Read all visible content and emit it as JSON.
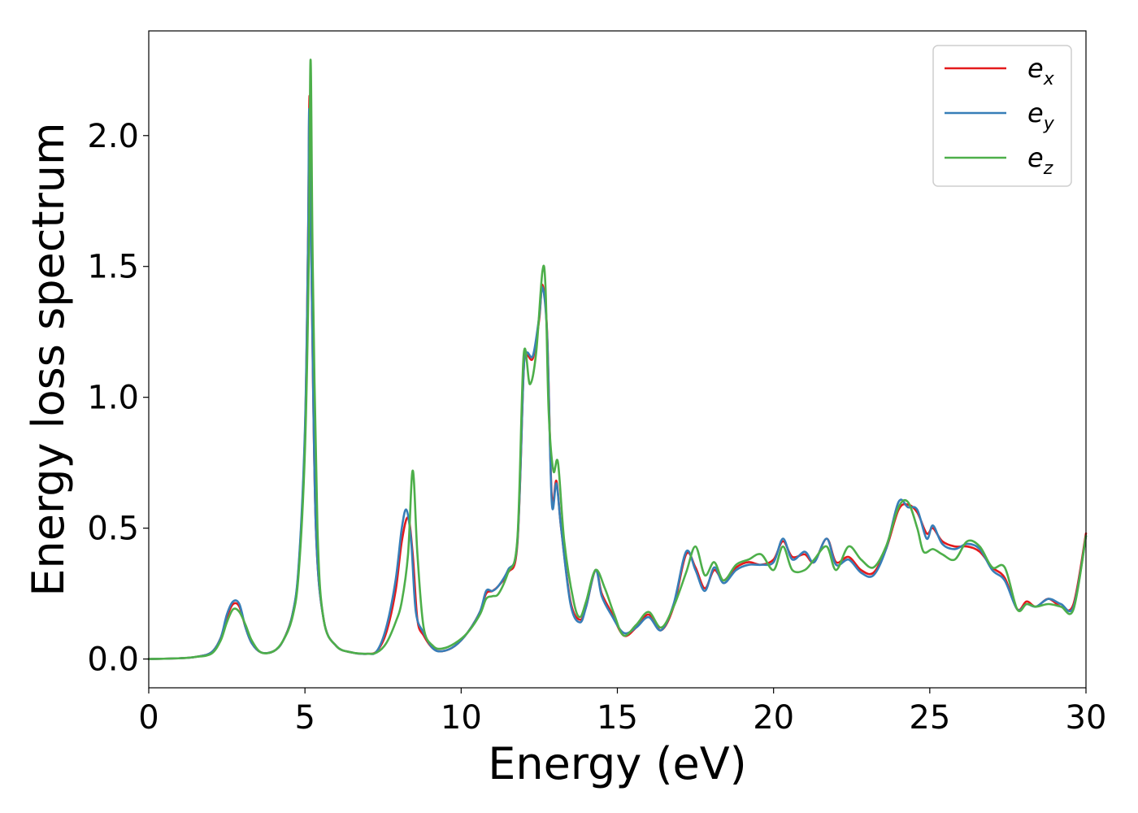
{
  "chart_data": {
    "type": "line",
    "title": "",
    "xlabel": "Energy (eV)",
    "ylabel": "Energy loss spectrum",
    "xlim": [
      0,
      30
    ],
    "ylim": [
      -0.11,
      2.4
    ],
    "grid": false,
    "legend_position": "top-right",
    "xticks": [
      0,
      5,
      10,
      15,
      20,
      25,
      30
    ],
    "xtick_labels": [
      "0",
      "5",
      "10",
      "15",
      "20",
      "25",
      "30"
    ],
    "yticks": [
      0.0,
      0.5,
      1.0,
      1.5,
      2.0
    ],
    "ytick_labels": [
      "0.0",
      "0.5",
      "1.0",
      "1.5",
      "2.0"
    ],
    "series": [
      {
        "name": "e_x",
        "label_main": "e",
        "label_sub": "x",
        "color": "#e41a1c",
        "points": [
          [
            0,
            0
          ],
          [
            1,
            0.003
          ],
          [
            1.5,
            0.008
          ],
          [
            2.0,
            0.025
          ],
          [
            2.3,
            0.08
          ],
          [
            2.5,
            0.16
          ],
          [
            2.7,
            0.21
          ],
          [
            2.9,
            0.2
          ],
          [
            3.1,
            0.12
          ],
          [
            3.3,
            0.06
          ],
          [
            3.6,
            0.025
          ],
          [
            4.0,
            0.03
          ],
          [
            4.3,
            0.07
          ],
          [
            4.6,
            0.17
          ],
          [
            4.8,
            0.35
          ],
          [
            5.0,
            0.85
          ],
          [
            5.1,
            1.6
          ],
          [
            5.15,
            2.15
          ],
          [
            5.22,
            1.4
          ],
          [
            5.35,
            0.5
          ],
          [
            5.6,
            0.15
          ],
          [
            6.0,
            0.05
          ],
          [
            6.5,
            0.025
          ],
          [
            7.0,
            0.02
          ],
          [
            7.3,
            0.03
          ],
          [
            7.6,
            0.1
          ],
          [
            7.9,
            0.26
          ],
          [
            8.1,
            0.45
          ],
          [
            8.3,
            0.54
          ],
          [
            8.45,
            0.4
          ],
          [
            8.6,
            0.15
          ],
          [
            8.8,
            0.09
          ],
          [
            9.1,
            0.04
          ],
          [
            9.4,
            0.03
          ],
          [
            9.8,
            0.05
          ],
          [
            10.2,
            0.1
          ],
          [
            10.6,
            0.18
          ],
          [
            10.8,
            0.25
          ],
          [
            11.0,
            0.26
          ],
          [
            11.2,
            0.28
          ],
          [
            11.5,
            0.33
          ],
          [
            11.8,
            0.44
          ],
          [
            12.0,
            1.1
          ],
          [
            12.1,
            1.16
          ],
          [
            12.3,
            1.15
          ],
          [
            12.5,
            1.3
          ],
          [
            12.6,
            1.43
          ],
          [
            12.75,
            1.25
          ],
          [
            12.9,
            0.62
          ],
          [
            13.05,
            0.68
          ],
          [
            13.2,
            0.5
          ],
          [
            13.5,
            0.22
          ],
          [
            13.8,
            0.15
          ],
          [
            14.0,
            0.2
          ],
          [
            14.3,
            0.34
          ],
          [
            14.5,
            0.25
          ],
          [
            14.8,
            0.18
          ],
          [
            15.2,
            0.09
          ],
          [
            15.6,
            0.12
          ],
          [
            16.0,
            0.17
          ],
          [
            16.4,
            0.11
          ],
          [
            16.8,
            0.2
          ],
          [
            17.2,
            0.4
          ],
          [
            17.5,
            0.35
          ],
          [
            17.8,
            0.27
          ],
          [
            18.1,
            0.34
          ],
          [
            18.4,
            0.3
          ],
          [
            18.8,
            0.35
          ],
          [
            19.2,
            0.37
          ],
          [
            19.6,
            0.36
          ],
          [
            20.0,
            0.38
          ],
          [
            20.3,
            0.45
          ],
          [
            20.6,
            0.39
          ],
          [
            21.0,
            0.4
          ],
          [
            21.3,
            0.37
          ],
          [
            21.7,
            0.46
          ],
          [
            22.0,
            0.37
          ],
          [
            22.4,
            0.39
          ],
          [
            22.8,
            0.34
          ],
          [
            23.2,
            0.33
          ],
          [
            23.6,
            0.42
          ],
          [
            24.0,
            0.57
          ],
          [
            24.3,
            0.59
          ],
          [
            24.6,
            0.56
          ],
          [
            24.9,
            0.48
          ],
          [
            25.1,
            0.5
          ],
          [
            25.4,
            0.45
          ],
          [
            25.8,
            0.43
          ],
          [
            26.2,
            0.43
          ],
          [
            26.6,
            0.41
          ],
          [
            27.0,
            0.35
          ],
          [
            27.4,
            0.31
          ],
          [
            27.8,
            0.19
          ],
          [
            28.1,
            0.22
          ],
          [
            28.4,
            0.2
          ],
          [
            28.8,
            0.23
          ],
          [
            29.2,
            0.2
          ],
          [
            29.6,
            0.21
          ],
          [
            30,
            0.48
          ]
        ]
      },
      {
        "name": "e_y",
        "label_main": "e",
        "label_sub": "y",
        "color": "#377eb8",
        "points": [
          [
            0,
            0
          ],
          [
            1,
            0.003
          ],
          [
            1.5,
            0.008
          ],
          [
            2.0,
            0.025
          ],
          [
            2.3,
            0.08
          ],
          [
            2.5,
            0.17
          ],
          [
            2.7,
            0.22
          ],
          [
            2.9,
            0.21
          ],
          [
            3.1,
            0.12
          ],
          [
            3.3,
            0.06
          ],
          [
            3.6,
            0.025
          ],
          [
            4.0,
            0.03
          ],
          [
            4.3,
            0.07
          ],
          [
            4.6,
            0.17
          ],
          [
            4.8,
            0.36
          ],
          [
            5.0,
            0.88
          ],
          [
            5.1,
            1.6
          ],
          [
            5.14,
            2.1
          ],
          [
            5.22,
            1.4
          ],
          [
            5.35,
            0.5
          ],
          [
            5.6,
            0.15
          ],
          [
            6.0,
            0.05
          ],
          [
            6.5,
            0.025
          ],
          [
            7.0,
            0.02
          ],
          [
            7.3,
            0.03
          ],
          [
            7.6,
            0.12
          ],
          [
            7.9,
            0.3
          ],
          [
            8.1,
            0.5
          ],
          [
            8.25,
            0.57
          ],
          [
            8.4,
            0.45
          ],
          [
            8.55,
            0.18
          ],
          [
            8.8,
            0.1
          ],
          [
            9.1,
            0.04
          ],
          [
            9.4,
            0.03
          ],
          [
            9.8,
            0.05
          ],
          [
            10.2,
            0.1
          ],
          [
            10.6,
            0.18
          ],
          [
            10.8,
            0.26
          ],
          [
            11.0,
            0.26
          ],
          [
            11.2,
            0.28
          ],
          [
            11.5,
            0.34
          ],
          [
            11.8,
            0.45
          ],
          [
            12.0,
            1.1
          ],
          [
            12.1,
            1.17
          ],
          [
            12.3,
            1.16
          ],
          [
            12.5,
            1.31
          ],
          [
            12.6,
            1.42
          ],
          [
            12.75,
            1.24
          ],
          [
            12.9,
            0.6
          ],
          [
            13.05,
            0.67
          ],
          [
            13.2,
            0.5
          ],
          [
            13.5,
            0.21
          ],
          [
            13.8,
            0.14
          ],
          [
            14.0,
            0.2
          ],
          [
            14.3,
            0.34
          ],
          [
            14.5,
            0.24
          ],
          [
            14.8,
            0.17
          ],
          [
            15.2,
            0.1
          ],
          [
            15.6,
            0.12
          ],
          [
            16.0,
            0.16
          ],
          [
            16.4,
            0.11
          ],
          [
            16.8,
            0.21
          ],
          [
            17.2,
            0.41
          ],
          [
            17.5,
            0.34
          ],
          [
            17.8,
            0.26
          ],
          [
            18.1,
            0.35
          ],
          [
            18.4,
            0.29
          ],
          [
            18.8,
            0.34
          ],
          [
            19.2,
            0.36
          ],
          [
            19.6,
            0.36
          ],
          [
            20.0,
            0.37
          ],
          [
            20.3,
            0.46
          ],
          [
            20.6,
            0.38
          ],
          [
            21.0,
            0.41
          ],
          [
            21.3,
            0.37
          ],
          [
            21.7,
            0.46
          ],
          [
            22.0,
            0.36
          ],
          [
            22.4,
            0.38
          ],
          [
            22.8,
            0.33
          ],
          [
            23.2,
            0.32
          ],
          [
            23.6,
            0.42
          ],
          [
            24.0,
            0.6
          ],
          [
            24.3,
            0.58
          ],
          [
            24.6,
            0.57
          ],
          [
            24.9,
            0.46
          ],
          [
            25.1,
            0.51
          ],
          [
            25.4,
            0.44
          ],
          [
            25.8,
            0.42
          ],
          [
            26.2,
            0.44
          ],
          [
            26.6,
            0.42
          ],
          [
            27.0,
            0.34
          ],
          [
            27.4,
            0.3
          ],
          [
            27.8,
            0.19
          ],
          [
            28.1,
            0.21
          ],
          [
            28.4,
            0.2
          ],
          [
            28.8,
            0.23
          ],
          [
            29.2,
            0.21
          ],
          [
            29.6,
            0.2
          ],
          [
            30,
            0.47
          ]
        ]
      },
      {
        "name": "e_z",
        "label_main": "e",
        "label_sub": "z",
        "color": "#4daf4a",
        "points": [
          [
            0,
            0
          ],
          [
            1,
            0.003
          ],
          [
            1.5,
            0.008
          ],
          [
            2.0,
            0.02
          ],
          [
            2.3,
            0.07
          ],
          [
            2.5,
            0.14
          ],
          [
            2.7,
            0.19
          ],
          [
            2.9,
            0.18
          ],
          [
            3.1,
            0.13
          ],
          [
            3.3,
            0.07
          ],
          [
            3.6,
            0.025
          ],
          [
            4.0,
            0.03
          ],
          [
            4.3,
            0.07
          ],
          [
            4.6,
            0.16
          ],
          [
            4.8,
            0.33
          ],
          [
            5.0,
            0.8
          ],
          [
            5.12,
            1.5
          ],
          [
            5.18,
            2.29
          ],
          [
            5.25,
            1.5
          ],
          [
            5.4,
            0.5
          ],
          [
            5.6,
            0.15
          ],
          [
            6.0,
            0.05
          ],
          [
            6.5,
            0.025
          ],
          [
            7.0,
            0.02
          ],
          [
            7.3,
            0.025
          ],
          [
            7.6,
            0.06
          ],
          [
            7.9,
            0.14
          ],
          [
            8.1,
            0.22
          ],
          [
            8.3,
            0.4
          ],
          [
            8.45,
            0.72
          ],
          [
            8.6,
            0.4
          ],
          [
            8.8,
            0.12
          ],
          [
            9.1,
            0.05
          ],
          [
            9.4,
            0.04
          ],
          [
            9.8,
            0.06
          ],
          [
            10.2,
            0.1
          ],
          [
            10.6,
            0.17
          ],
          [
            10.8,
            0.23
          ],
          [
            11.0,
            0.24
          ],
          [
            11.2,
            0.25
          ],
          [
            11.5,
            0.33
          ],
          [
            11.8,
            0.46
          ],
          [
            12.0,
            1.16
          ],
          [
            12.2,
            1.05
          ],
          [
            12.4,
            1.17
          ],
          [
            12.6,
            1.48
          ],
          [
            12.7,
            1.42
          ],
          [
            12.8,
            0.95
          ],
          [
            12.95,
            0.72
          ],
          [
            13.1,
            0.75
          ],
          [
            13.3,
            0.45
          ],
          [
            13.6,
            0.22
          ],
          [
            13.8,
            0.16
          ],
          [
            14.0,
            0.22
          ],
          [
            14.3,
            0.34
          ],
          [
            14.6,
            0.27
          ],
          [
            14.9,
            0.17
          ],
          [
            15.2,
            0.09
          ],
          [
            15.6,
            0.13
          ],
          [
            16.0,
            0.18
          ],
          [
            16.4,
            0.12
          ],
          [
            16.8,
            0.2
          ],
          [
            17.2,
            0.33
          ],
          [
            17.5,
            0.43
          ],
          [
            17.8,
            0.32
          ],
          [
            18.1,
            0.37
          ],
          [
            18.4,
            0.3
          ],
          [
            18.8,
            0.36
          ],
          [
            19.2,
            0.38
          ],
          [
            19.6,
            0.4
          ],
          [
            20.0,
            0.34
          ],
          [
            20.3,
            0.43
          ],
          [
            20.6,
            0.34
          ],
          [
            21.0,
            0.34
          ],
          [
            21.3,
            0.38
          ],
          [
            21.7,
            0.43
          ],
          [
            22.0,
            0.34
          ],
          [
            22.4,
            0.43
          ],
          [
            22.8,
            0.38
          ],
          [
            23.2,
            0.35
          ],
          [
            23.6,
            0.43
          ],
          [
            24.0,
            0.58
          ],
          [
            24.3,
            0.6
          ],
          [
            24.6,
            0.5
          ],
          [
            24.8,
            0.41
          ],
          [
            25.1,
            0.42
          ],
          [
            25.4,
            0.4
          ],
          [
            25.8,
            0.38
          ],
          [
            26.2,
            0.45
          ],
          [
            26.6,
            0.43
          ],
          [
            27.0,
            0.35
          ],
          [
            27.4,
            0.35
          ],
          [
            27.8,
            0.19
          ],
          [
            28.1,
            0.21
          ],
          [
            28.4,
            0.2
          ],
          [
            28.8,
            0.21
          ],
          [
            29.2,
            0.2
          ],
          [
            29.6,
            0.19
          ],
          [
            30,
            0.47
          ]
        ]
      }
    ]
  }
}
